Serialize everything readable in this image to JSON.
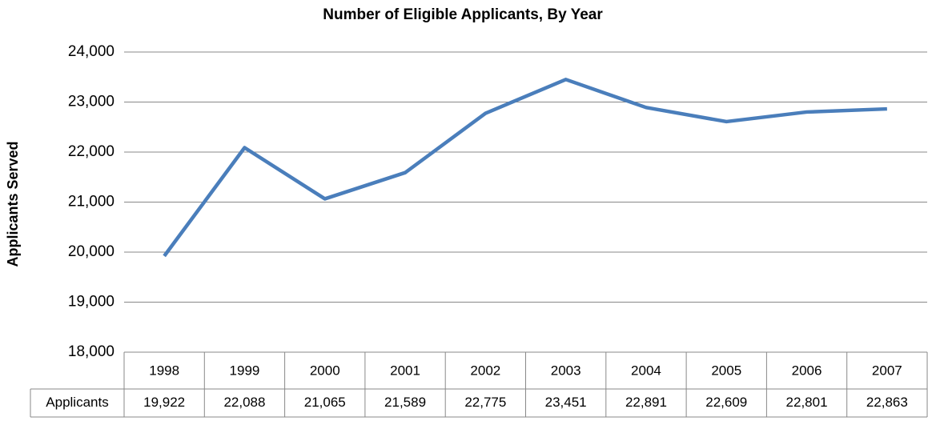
{
  "chart_data": {
    "type": "line",
    "title": "Number of Eligible Applicants, By Year",
    "y_label": "Applicants Served",
    "categories": [
      "1998",
      "1999",
      "2000",
      "2001",
      "2002",
      "2003",
      "2004",
      "2005",
      "2006",
      "2007"
    ],
    "series": [
      {
        "name": "Applicants",
        "color": "#4a7ebb",
        "values": [
          19922,
          22088,
          21065,
          21589,
          22775,
          23451,
          22891,
          22609,
          22801,
          22863
        ],
        "value_labels": [
          "19,922",
          "22,088",
          "21,065",
          "21,589",
          "22,775",
          "23,451",
          "22,891",
          "22,609",
          "22,801",
          "22,863"
        ]
      }
    ],
    "ylim": [
      18000,
      24000
    ],
    "yticks": [
      {
        "value": 18000,
        "label": "18,000"
      },
      {
        "value": 19000,
        "label": "19,000"
      },
      {
        "value": 20000,
        "label": "20,000"
      },
      {
        "value": 21000,
        "label": "21,000"
      },
      {
        "value": 22000,
        "label": "22,000"
      },
      {
        "value": 23000,
        "label": "23,000"
      },
      {
        "value": 24000,
        "label": "24,000"
      }
    ],
    "grid": true
  }
}
